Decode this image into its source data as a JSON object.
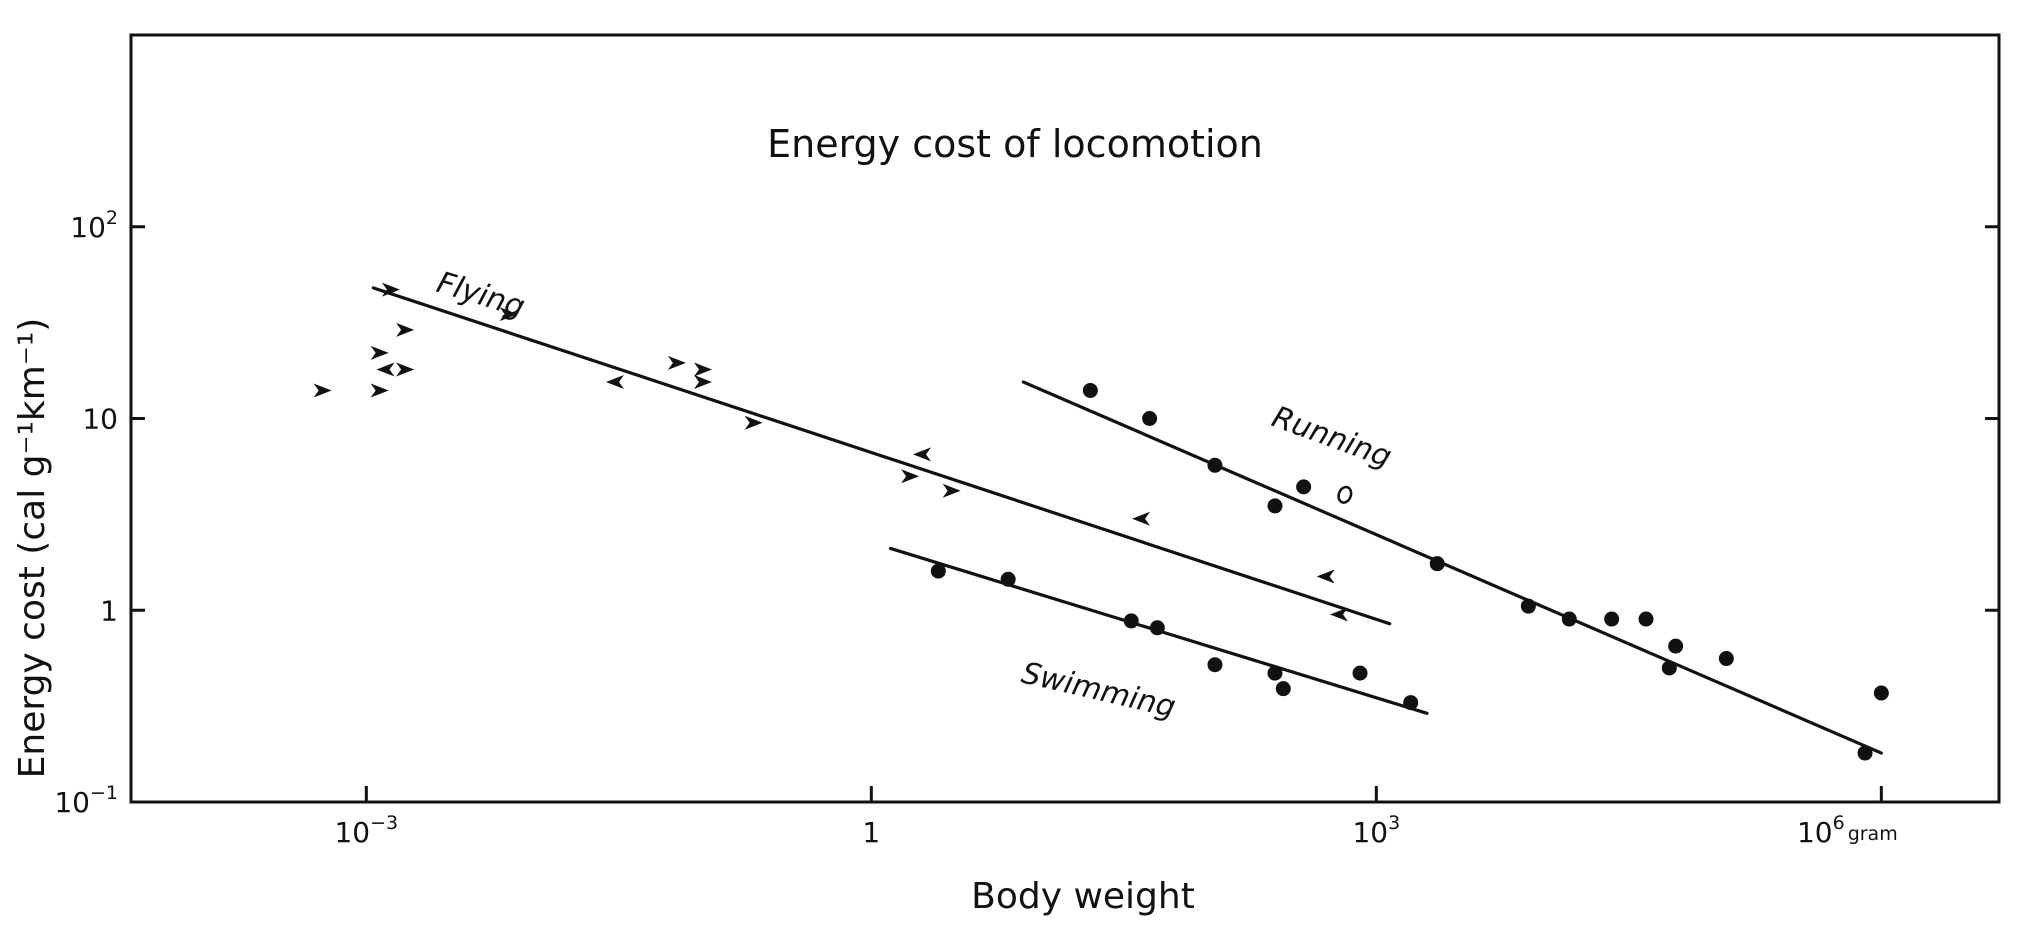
{
  "chart_data": {
    "type": "scatter",
    "title": "Energy cost of locomotion",
    "xlabel": "Body weight",
    "ylabel": "Energy cost (cal g⁻¹km⁻¹)",
    "x_scale": "log",
    "y_scale": "log",
    "xlim": [
      4e-05,
      5000000
    ],
    "ylim": [
      0.1,
      1000
    ],
    "grid": false,
    "legend": "none",
    "x_ticks": [
      {
        "value": 0.001,
        "base": "10",
        "exp": "−3",
        "unit": ""
      },
      {
        "value": 1,
        "base": "1",
        "exp": "",
        "unit": ""
      },
      {
        "value": 1000,
        "base": "10",
        "exp": "3",
        "unit": ""
      },
      {
        "value": 1000000,
        "base": "10",
        "exp": "6",
        "unit": "gram"
      }
    ],
    "y_ticks": [
      {
        "value": 0.1,
        "base": "10",
        "exp": "−1"
      },
      {
        "value": 1,
        "base": "1",
        "exp": ""
      },
      {
        "value": 10,
        "base": "10",
        "exp": ""
      },
      {
        "value": 100,
        "base": "10",
        "exp": "2"
      }
    ],
    "series": [
      {
        "name": "Flying",
        "marker": "arrowhead",
        "color": "#111111",
        "points": [
          [
            0.00055,
            14
          ],
          [
            0.0014,
            47
          ],
          [
            0.0012,
            22
          ],
          [
            0.0013,
            18
          ],
          [
            0.0017,
            18
          ],
          [
            0.0017,
            29
          ],
          [
            0.0012,
            14
          ],
          [
            0.007,
            35
          ],
          [
            0.03,
            15.5
          ],
          [
            0.07,
            19.5
          ],
          [
            0.1,
            18
          ],
          [
            0.1,
            15.5
          ],
          [
            0.2,
            9.5
          ],
          [
            2.0,
            6.5
          ],
          [
            1.7,
            5.0
          ],
          [
            3.0,
            4.2
          ],
          [
            40,
            3.0
          ],
          [
            500,
            1.5
          ],
          [
            600,
            0.95
          ]
        ],
        "fit": [
          [
            0.0011,
            48
          ],
          [
            1200,
            0.85
          ]
        ]
      },
      {
        "name": "Running",
        "marker": "filled-circle",
        "color": "#111111",
        "points": [
          [
            20,
            14
          ],
          [
            45,
            10
          ],
          [
            110,
            5.7
          ],
          [
            250,
            3.5
          ],
          [
            370,
            4.4
          ],
          [
            2300,
            1.75
          ],
          [
            8000,
            1.05
          ],
          [
            14000,
            0.9
          ],
          [
            25000,
            0.9
          ],
          [
            40000,
            0.9
          ],
          [
            60000,
            0.65
          ],
          [
            55000,
            0.5
          ],
          [
            120000,
            0.56
          ],
          [
            800000,
            0.18
          ],
          [
            1000000,
            0.37
          ]
        ],
        "open_points": [
          [
            650,
            4.0
          ]
        ],
        "fit": [
          [
            8,
            15.5
          ],
          [
            1000000,
            0.18
          ]
        ]
      },
      {
        "name": "Swimming",
        "marker": "filled-circle",
        "color": "#111111",
        "points": [
          [
            2.5,
            1.6
          ],
          [
            6.5,
            1.45
          ],
          [
            35,
            0.88
          ],
          [
            50,
            0.81
          ],
          [
            110,
            0.52
          ],
          [
            250,
            0.47
          ],
          [
            280,
            0.39
          ],
          [
            800,
            0.47
          ],
          [
            1600,
            0.33
          ]
        ],
        "fit": [
          [
            1.3,
            2.1
          ],
          [
            2000,
            0.29
          ]
        ]
      }
    ]
  }
}
